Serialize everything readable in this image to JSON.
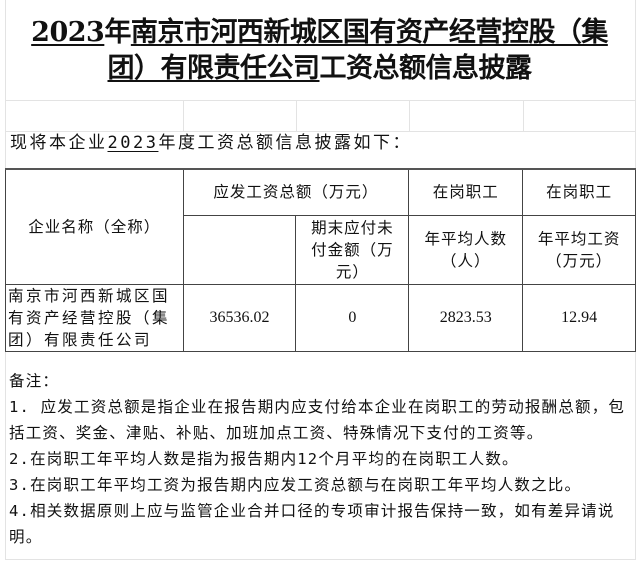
{
  "title": {
    "year": "2023",
    "year_suffix": "年",
    "company_line1": "南京市河西新城区国有资产经营控股（集",
    "company_line2": "团）有限责任公司",
    "subject": "工资总额信息披露"
  },
  "intro": {
    "prefix": "现将本企业",
    "year": "2023",
    "suffix": "年度工资总额信息披露如下："
  },
  "table": {
    "headers": {
      "company_name": "企业名称（全称）",
      "total_wages": "应发工资总额（万元）",
      "unpaid_amount": "期末应付未付金额（万元）",
      "employees_group1": "在岗职工",
      "avg_headcount": "年平均人数（人）",
      "employees_group2": "在岗职工",
      "avg_wage": "年平均工资（万元）"
    },
    "rows": [
      {
        "company_name": "南京市河西新城区国有资产经营控股（集团）有限责任公司",
        "total_wages": "36536.02",
        "unpaid_amount": "0",
        "avg_headcount": "2823.53",
        "avg_wage": "12.94"
      }
    ]
  },
  "notes": {
    "label": "备注：",
    "items": [
      "1. 应发工资总额是指企业在报告期内应支付给本企业在岗职工的劳动报酬总额，包括工资、奖金、津贴、补贴、加班加点工资、特殊情况下支付的工资等。",
      "2.在岗职工年平均人数是指为报告期内12个月平均的在岗职工人数。",
      "3.在岗职工年平均工资为报告期内应发工资总额与在岗职工年平均人数之比。",
      "4.相关数据原则上应与监管企业合并口径的专项审计报告保持一致，如有差异请说明。"
    ]
  }
}
